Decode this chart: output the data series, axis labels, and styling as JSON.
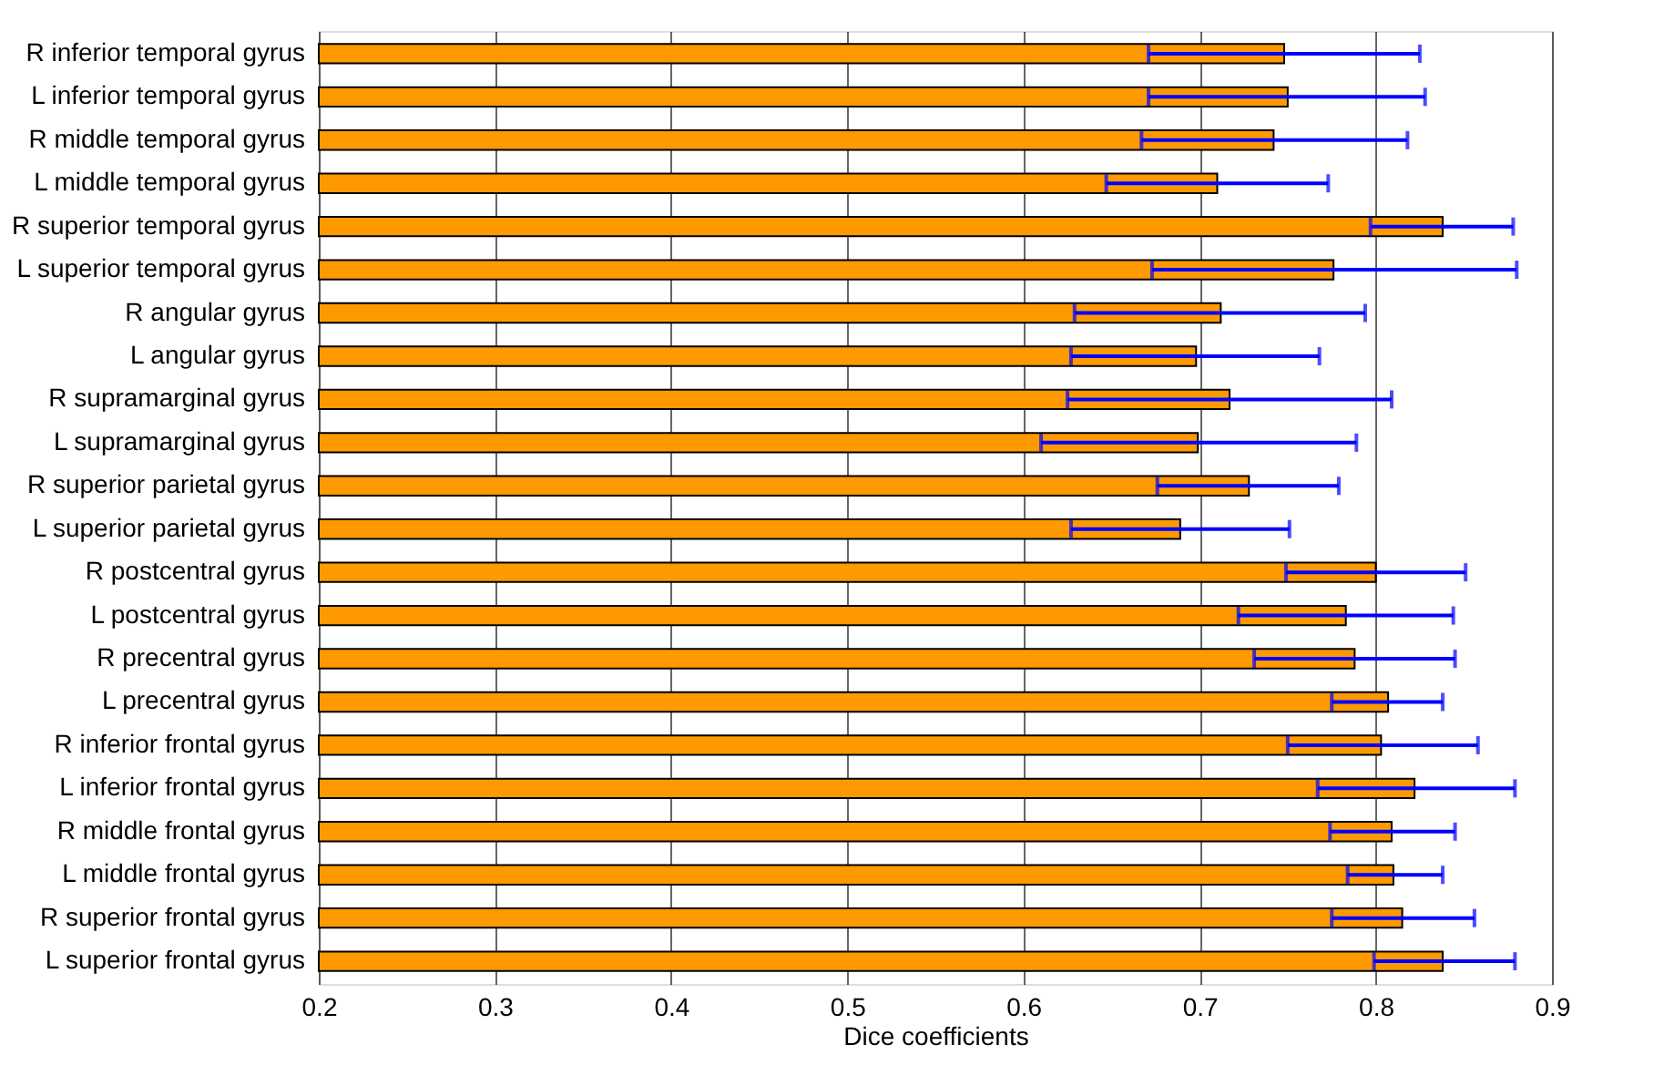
{
  "chart_data": {
    "type": "bar",
    "orientation": "horizontal",
    "xlabel": "Dice coefficients",
    "categories": [
      "R inferior temporal gyrus",
      "L inferior temporal gyrus",
      "R middle temporal gyrus",
      "L middle temporal gyrus",
      "R superior temporal gyrus",
      "L superior temporal gyrus",
      "R angular gyrus",
      "L angular gyrus",
      "R supramarginal gyrus",
      "L supramarginal gyrus",
      "R superior parietal gyrus",
      "L superior parietal gyrus",
      "R postcentral gyrus",
      "L postcentral gyrus",
      "R precentral gyrus",
      "L precentral gyrus",
      "R inferior frontal gyrus",
      "L inferior frontal gyrus",
      "R middle frontal gyrus",
      "L middle frontal gyrus",
      "R superior frontal gyrus",
      "L superior frontal gyrus"
    ],
    "values": [
      0.748,
      0.75,
      0.742,
      0.71,
      0.838,
      0.776,
      0.712,
      0.698,
      0.717,
      0.699,
      0.728,
      0.689,
      0.8,
      0.783,
      0.788,
      0.807,
      0.803,
      0.822,
      0.809,
      0.81,
      0.815,
      0.838
    ],
    "errors": [
      [
        0.671,
        0.825
      ],
      [
        0.671,
        0.828
      ],
      [
        0.667,
        0.818
      ],
      [
        0.647,
        0.773
      ],
      [
        0.797,
        0.878
      ],
      [
        0.673,
        0.88
      ],
      [
        0.629,
        0.794
      ],
      [
        0.627,
        0.768
      ],
      [
        0.625,
        0.809
      ],
      [
        0.61,
        0.789
      ],
      [
        0.676,
        0.779
      ],
      [
        0.627,
        0.751
      ],
      [
        0.749,
        0.851
      ],
      [
        0.722,
        0.844
      ],
      [
        0.731,
        0.845
      ],
      [
        0.775,
        0.838
      ],
      [
        0.75,
        0.858
      ],
      [
        0.767,
        0.879
      ],
      [
        0.774,
        0.845
      ],
      [
        0.784,
        0.838
      ],
      [
        0.775,
        0.856
      ],
      [
        0.799,
        0.879
      ]
    ],
    "color": "#ff9900",
    "xlim": [
      0.2,
      0.9
    ],
    "xticks": [
      0.2,
      0.3,
      0.4,
      0.5,
      0.6,
      0.7,
      0.8,
      0.9
    ],
    "grid": "x"
  }
}
